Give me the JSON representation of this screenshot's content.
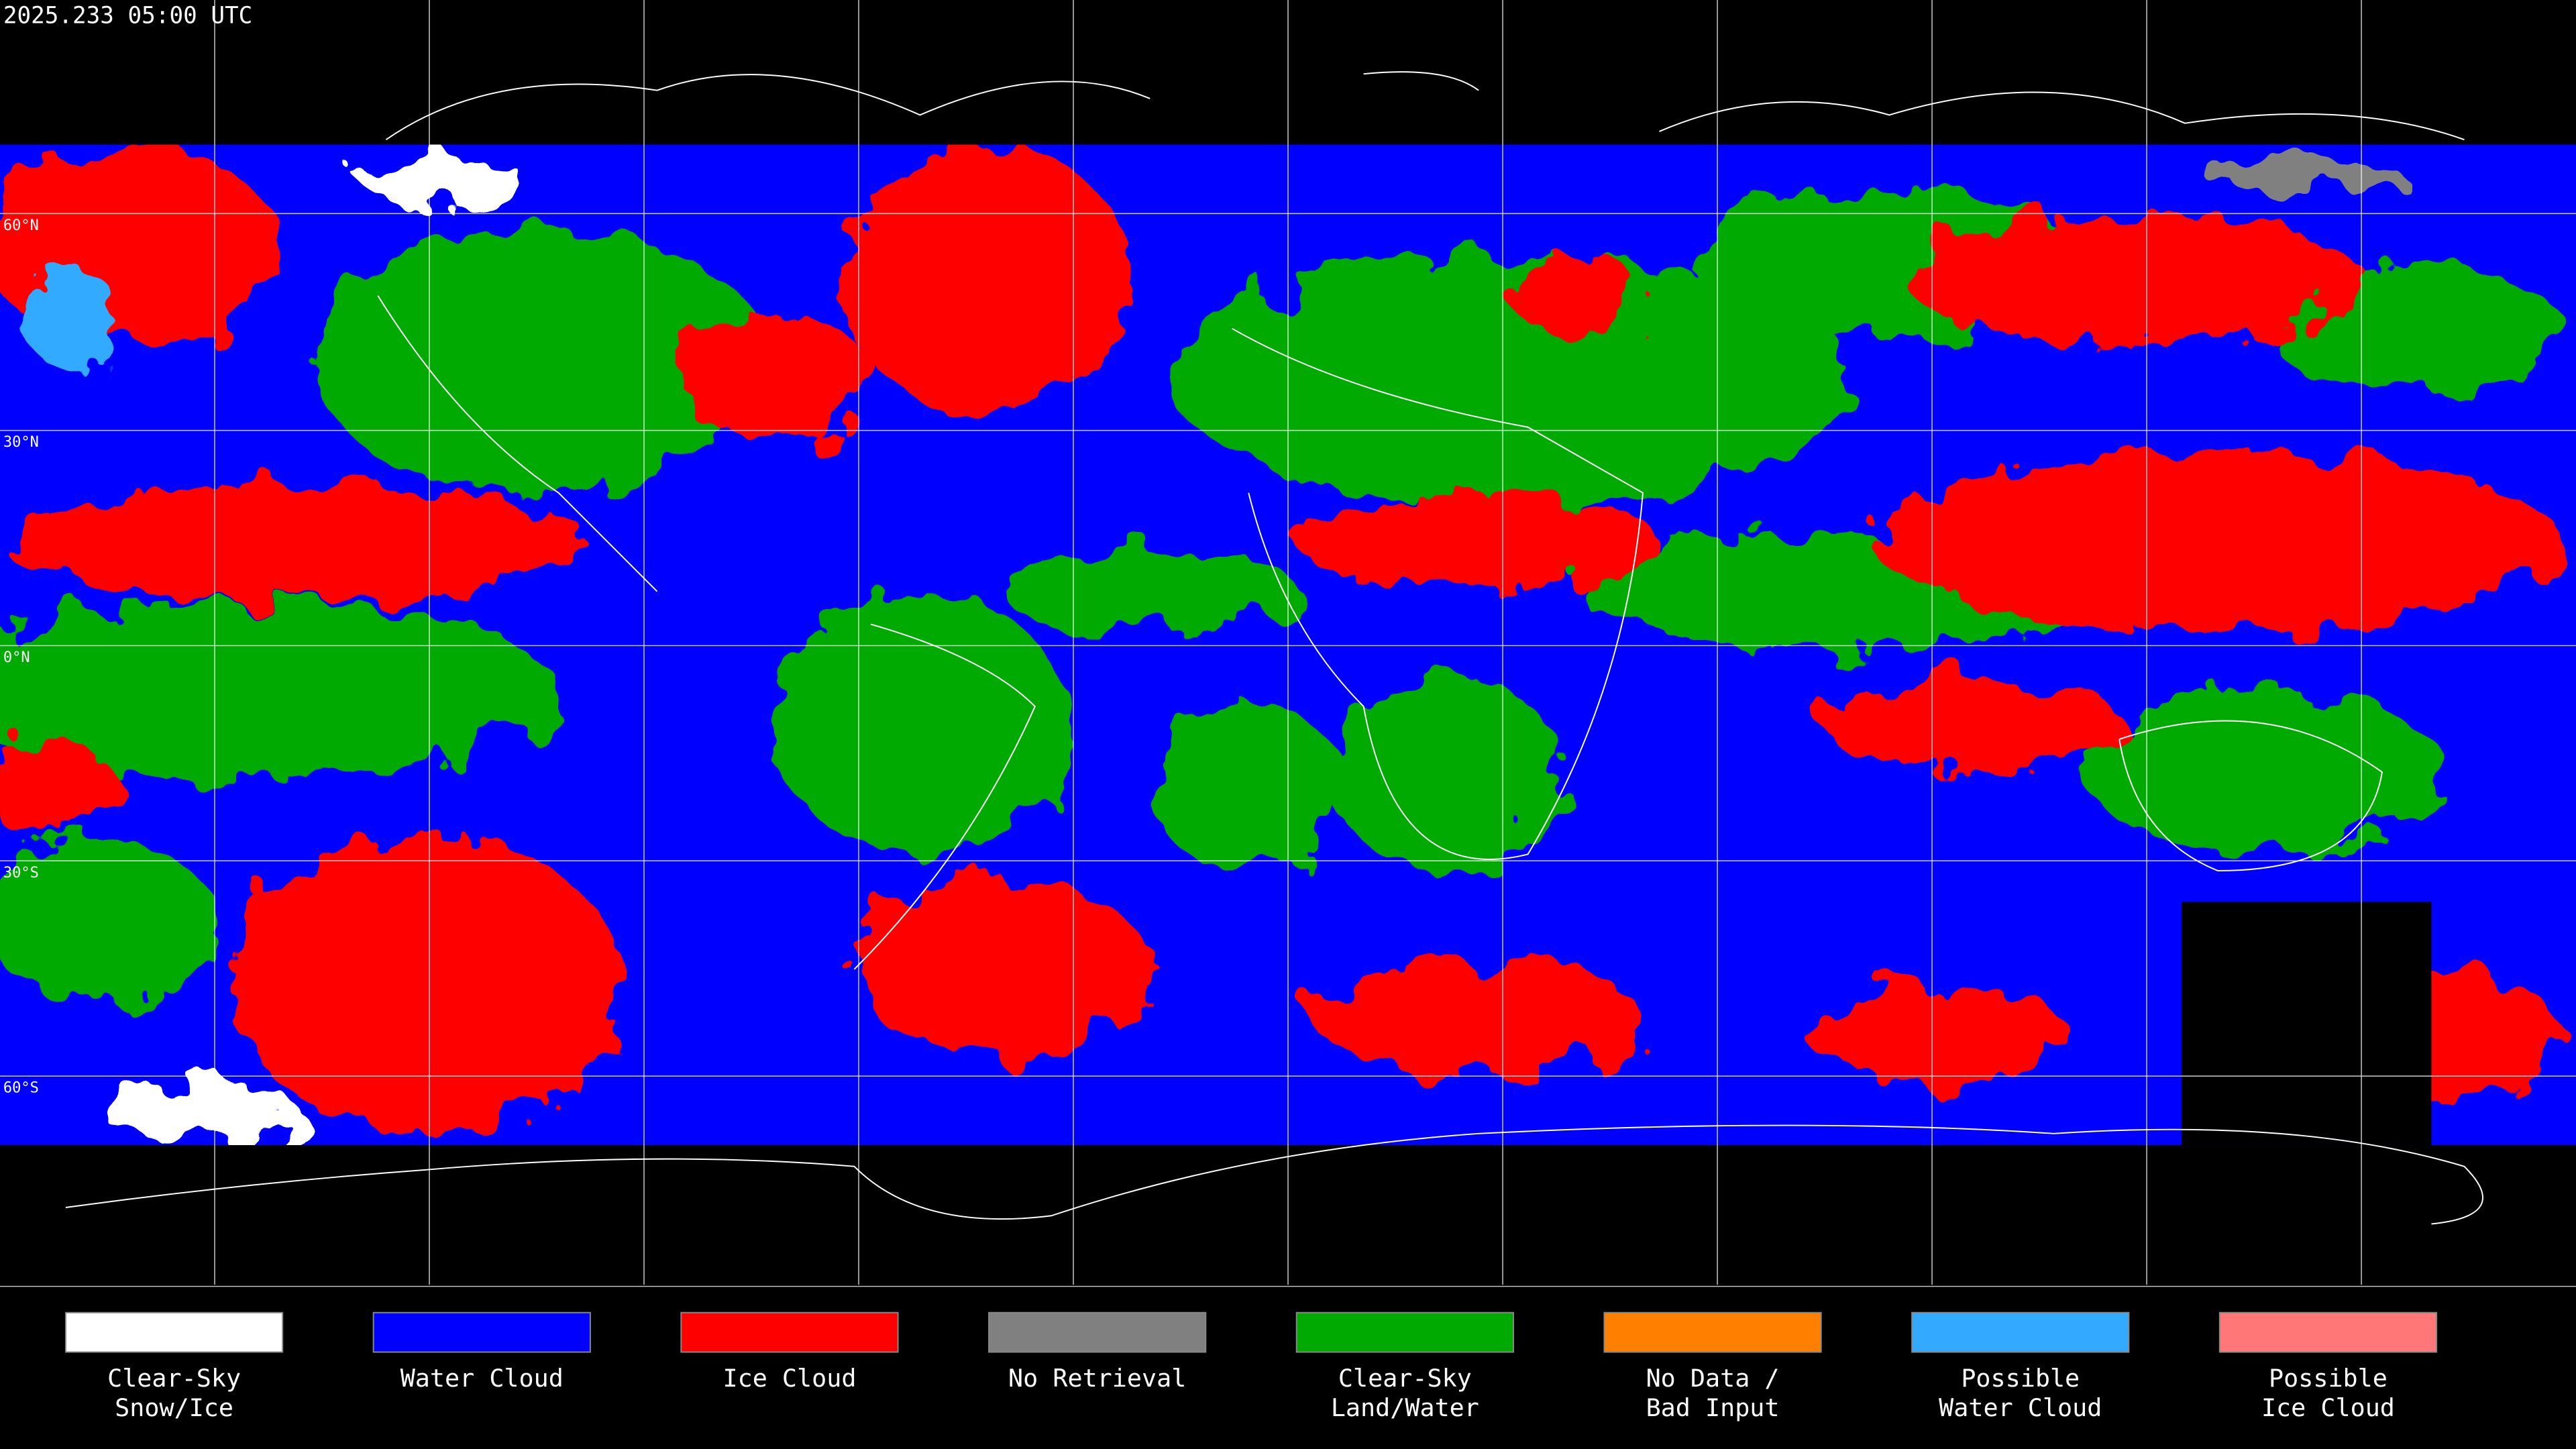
{
  "header": {
    "title": "2025.233 05:00 UTC"
  },
  "latitude_labels": [
    "60°N",
    "30°N",
    "0°N",
    "30°S",
    "60°S"
  ],
  "legend": [
    {
      "lines": [
        "Clear-Sky",
        "Snow/Ice"
      ],
      "color": "#ffffff"
    },
    {
      "lines": [
        "Water Cloud"
      ],
      "color": "#0000ff"
    },
    {
      "lines": [
        "Ice Cloud"
      ],
      "color": "#ff0000"
    },
    {
      "lines": [
        "No Retrieval"
      ],
      "color": "#808080"
    },
    {
      "lines": [
        "Clear-Sky",
        "Land/Water"
      ],
      "color": "#00aa00"
    },
    {
      "lines": [
        "No Data /",
        "Bad Input"
      ],
      "color": "#ff8000"
    },
    {
      "lines": [
        "Possible",
        "Water Cloud"
      ],
      "color": "#33aaff"
    },
    {
      "lines": [
        "Possible",
        "Ice Cloud"
      ],
      "color": "#ff7777"
    }
  ]
}
